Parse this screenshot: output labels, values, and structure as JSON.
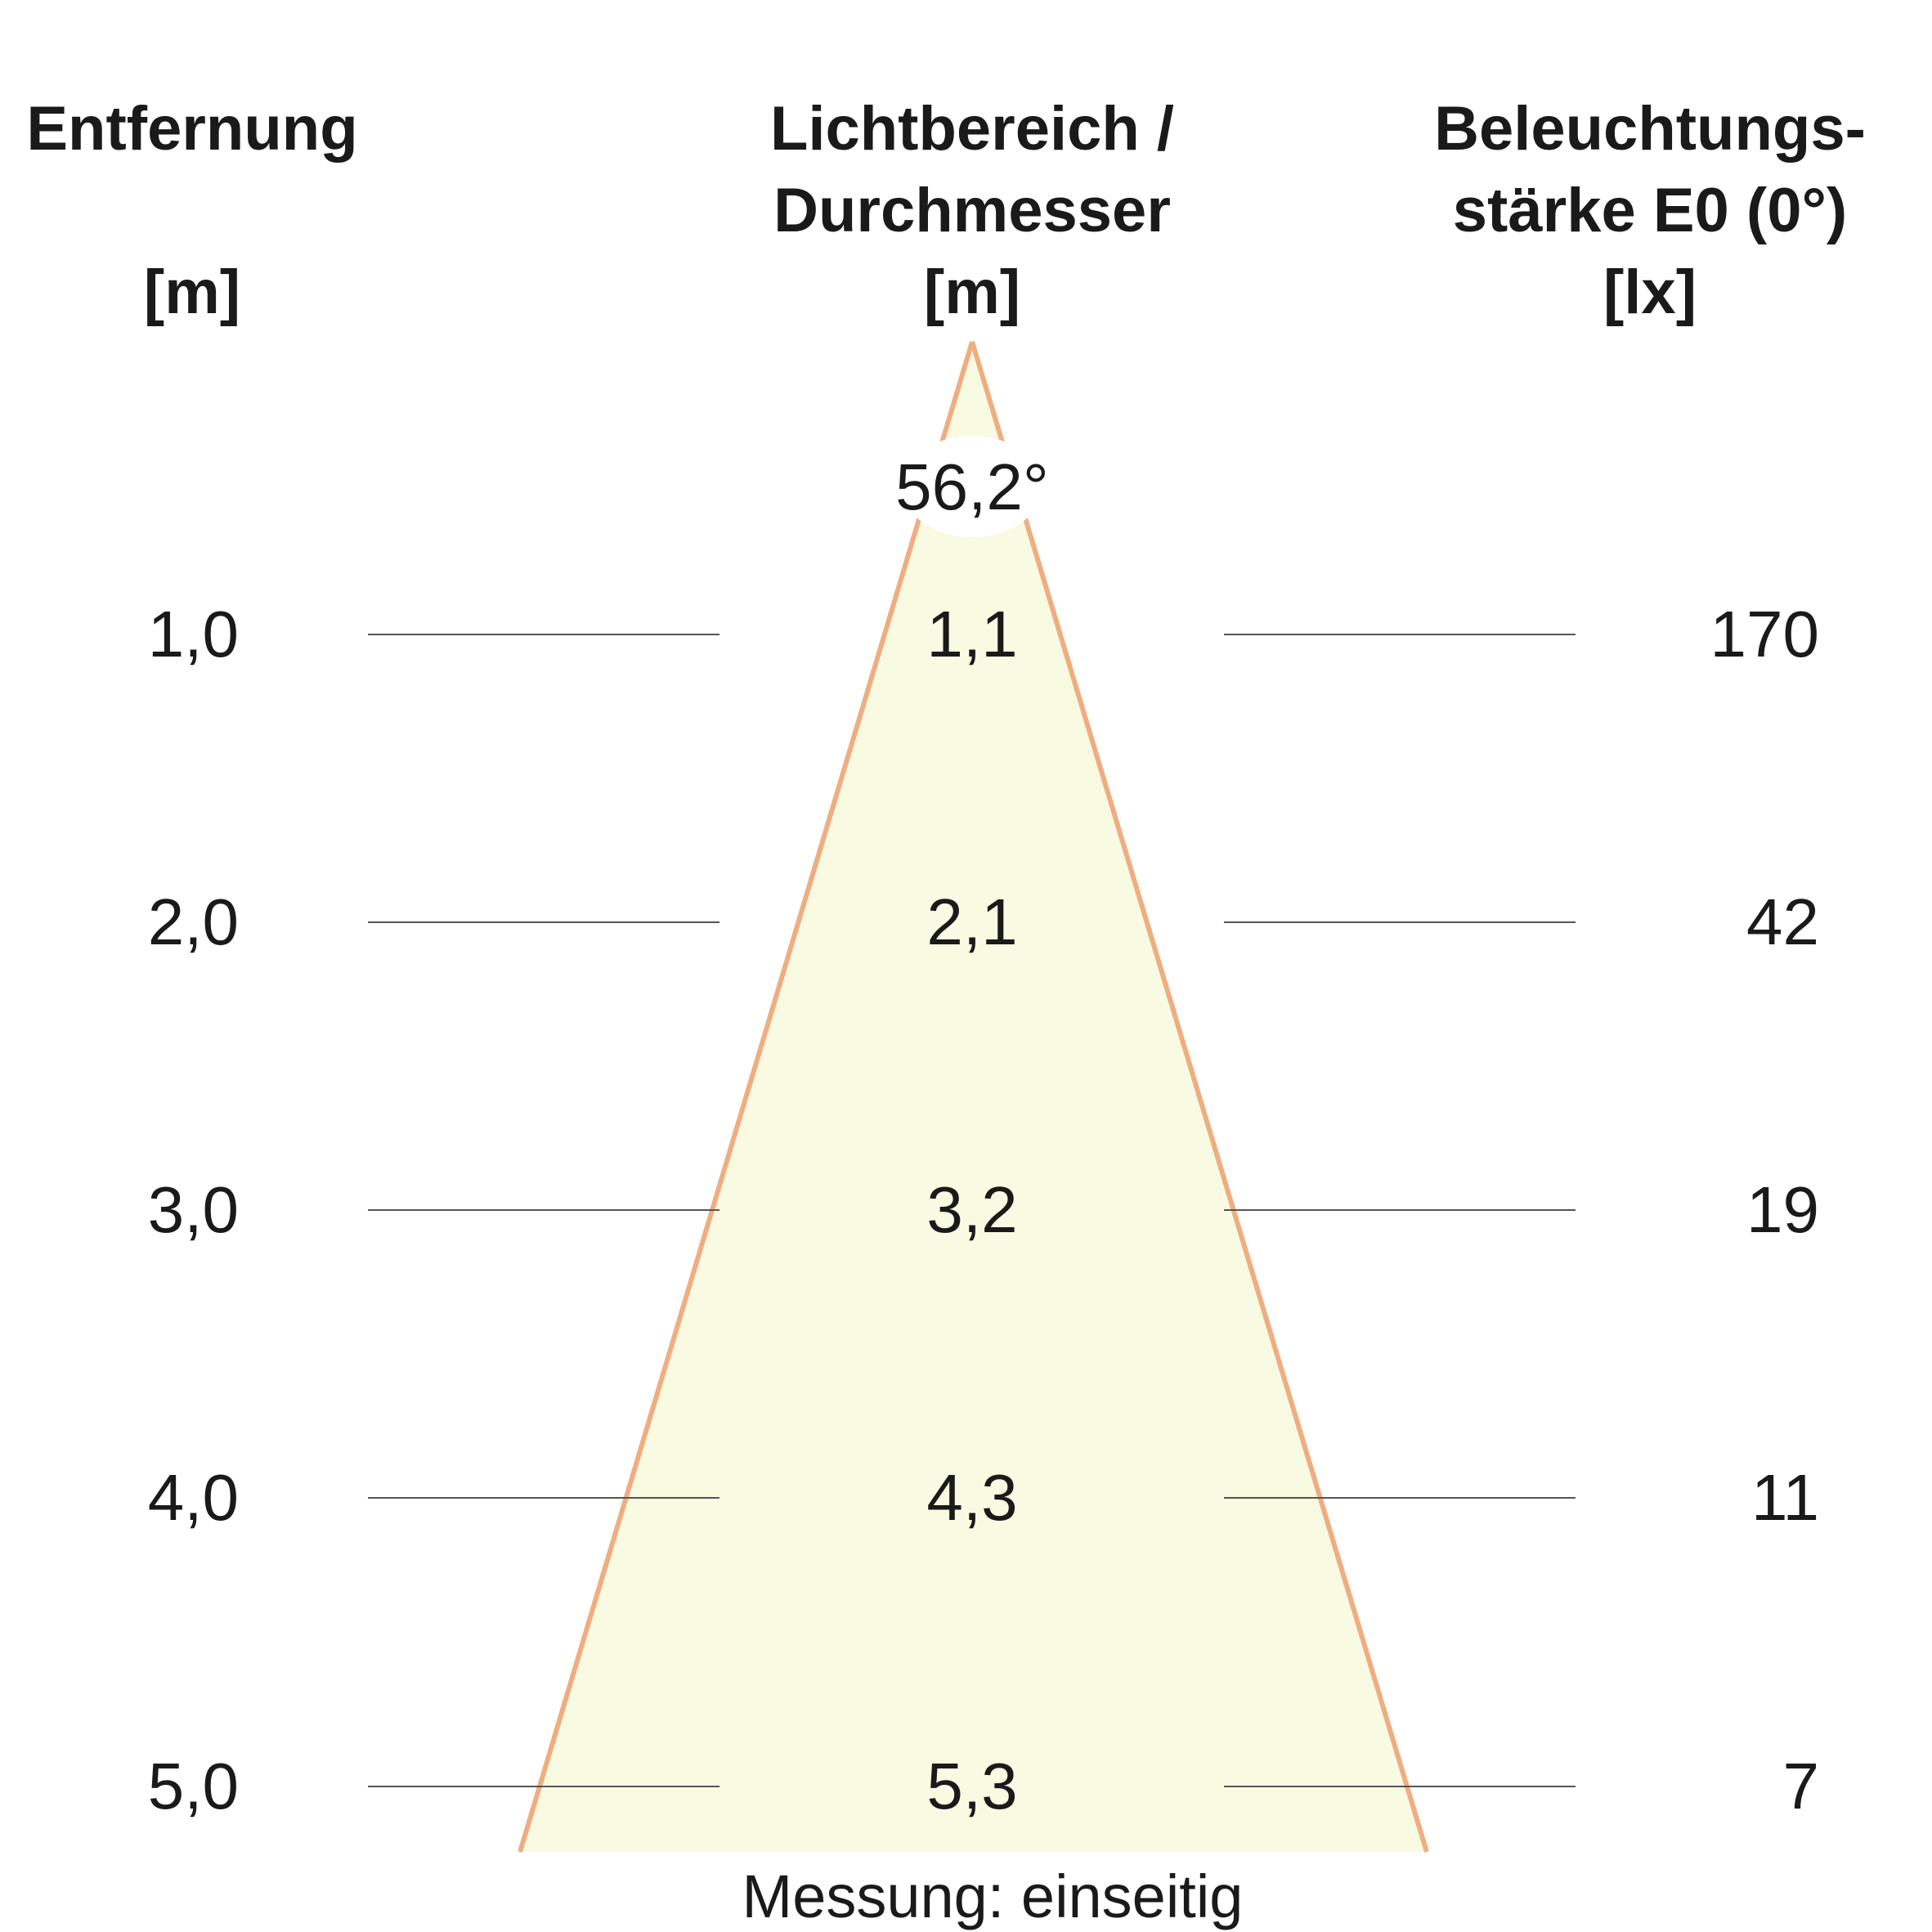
{
  "headers": {
    "distance": {
      "line1": "Entfernung",
      "unit": "[m]"
    },
    "diameter": {
      "line1": "Lichtbereich /",
      "line2": "Durchmesser",
      "unit": "[m]"
    },
    "illuminance": {
      "line1": "Beleuchtungs-",
      "line2": "stärke E0 (0°)",
      "unit": "[lx]"
    }
  },
  "beam_angle": "56,2°",
  "rows": [
    {
      "distance": "1,0",
      "diameter": "1,1",
      "illuminance": "170"
    },
    {
      "distance": "2,0",
      "diameter": "2,1",
      "illuminance": "42"
    },
    {
      "distance": "3,0",
      "diameter": "3,2",
      "illuminance": "19"
    },
    {
      "distance": "4,0",
      "diameter": "4,3",
      "illuminance": "11"
    },
    {
      "distance": "5,0",
      "diameter": "5,3",
      "illuminance": "7"
    }
  ],
  "footer": "Messung: einseitig",
  "colors": {
    "cone_fill": "#f8fae2",
    "cone_edge": "#f0ad80",
    "guide_line": "#555555",
    "text": "#1a1a1a"
  }
}
